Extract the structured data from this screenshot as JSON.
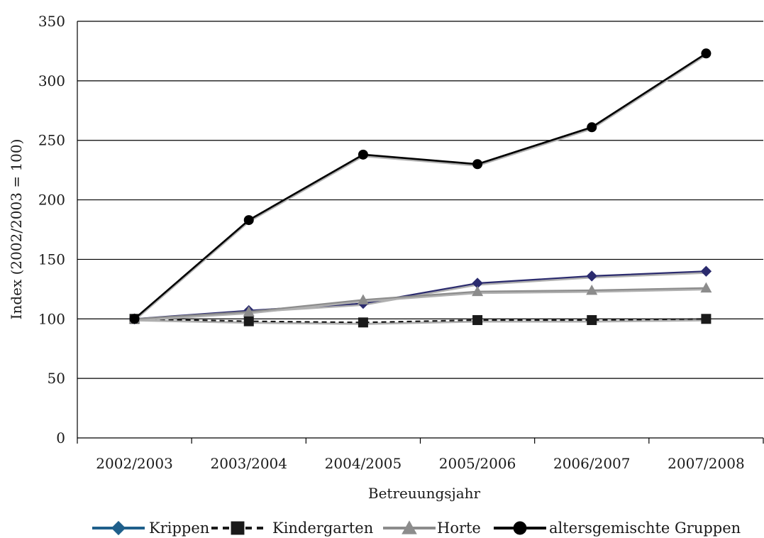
{
  "chart_data": {
    "type": "line",
    "title": "",
    "xlabel": "Betreuungsjahr",
    "ylabel": "Index (2002/2003 = 100)",
    "categories": [
      "2002/2003",
      "2003/2004",
      "2004/2005",
      "2005/2006",
      "2006/2007",
      "2007/2008"
    ],
    "ylim": [
      0,
      350
    ],
    "yticks": [
      "0",
      "50",
      "100",
      "150",
      "200",
      "250",
      "300",
      "350"
    ],
    "grid": true,
    "legend_position": "bottom",
    "series": [
      {
        "name": "Krippen",
        "values": [
          100,
          107,
          113,
          130,
          136,
          140
        ],
        "color": "#2b2b6e",
        "marker": "diamond",
        "dash": "solid"
      },
      {
        "name": "Kindergarten",
        "values": [
          100,
          98,
          97,
          99,
          99,
          100
        ],
        "color": "#1a1a1a",
        "marker": "square",
        "dash": "dashed"
      },
      {
        "name": "Horte",
        "values": [
          100,
          106,
          116,
          123,
          124,
          126
        ],
        "color": "#8c8c8c",
        "marker": "triangle",
        "dash": "solid"
      },
      {
        "name": "altersgemischte Gruppen",
        "values": [
          100,
          183,
          238,
          230,
          261,
          323
        ],
        "color": "#000000",
        "marker": "circle",
        "dash": "solid"
      }
    ]
  }
}
